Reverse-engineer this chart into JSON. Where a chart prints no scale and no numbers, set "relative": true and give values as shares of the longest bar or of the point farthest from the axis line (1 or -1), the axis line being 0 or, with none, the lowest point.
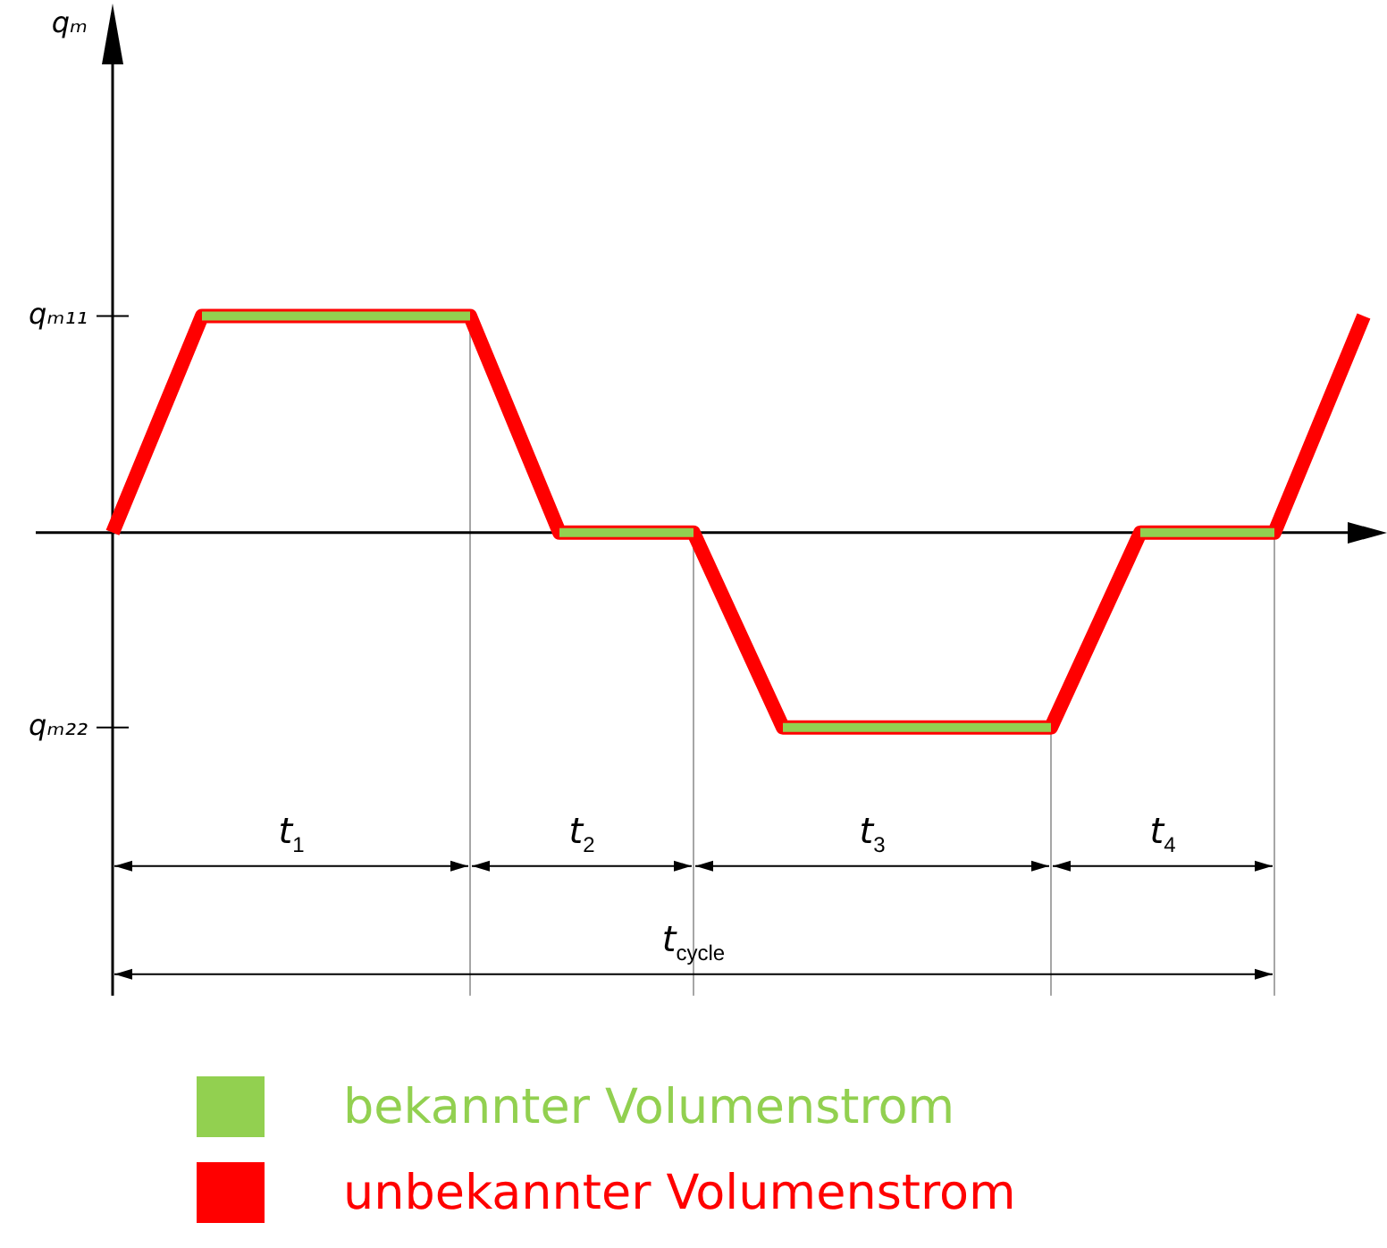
{
  "chart_data": {
    "type": "line",
    "relative": true,
    "legend": "bottom",
    "grid": "x",
    "marker": "none",
    "line_style": "solid",
    "categories": [
      null,
      null,
      null,
      null,
      null,
      null,
      null,
      null,
      null,
      null,
      null,
      null,
      null,
      null,
      null,
      null,
      null,
      null,
      null,
      null,
      null,
      null,
      null,
      null,
      null,
      null,
      null,
      null,
      null
    ],
    "series": [
      {
        "name": "bekannter Volumenstrom",
        "color": "#92d050",
        "values": [
          null,
          null,
          1,
          1,
          1,
          1,
          1,
          1,
          1,
          null,
          0,
          0,
          0,
          0,
          null,
          -0.9,
          -0.9,
          -0.9,
          -0.9,
          -0.9,
          -0.9,
          -0.9,
          null,
          0,
          0,
          0,
          0,
          null,
          null
        ]
      },
      {
        "name": "unbekannter Volumenstrom",
        "color": "#ff0000",
        "values": [
          0,
          0.5,
          1,
          1,
          1,
          1,
          1,
          1,
          1,
          0.5,
          0,
          0,
          0,
          0,
          -0.45,
          -0.9,
          -0.9,
          -0.9,
          -0.9,
          -0.9,
          -0.9,
          -0.9,
          -0.45,
          0,
          0,
          0,
          0,
          0.5,
          1
        ]
      }
    ],
    "annotations": [
      "qₘ",
      "qₘ₁₁",
      "qₘ₂₂",
      "t$_{1}$",
      "t$_{2}$",
      "t$_{3}$",
      "t$_{4}$",
      "t$_{cycle}$"
    ]
  }
}
